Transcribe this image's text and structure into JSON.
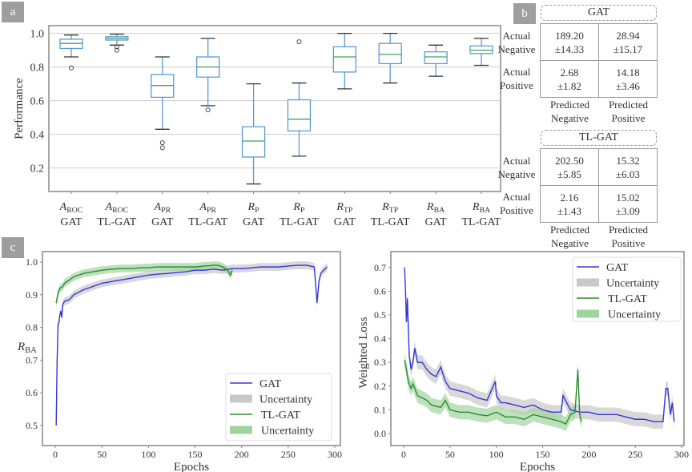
{
  "panel_labels": {
    "a": "a",
    "b": "b",
    "c": "c"
  },
  "chart_data": [
    {
      "type": "box",
      "id": "a",
      "ylabel": "Performance",
      "ylim": [
        0.05,
        1.05
      ],
      "yticks": [
        0.2,
        0.4,
        0.6,
        0.8,
        1.0
      ],
      "ytick_labels": [
        "0.2",
        "0.4",
        "0.6",
        "0.8",
        "1.0"
      ],
      "grid": "horizontal",
      "colors": {
        "box": "#5b9bd5",
        "median": "#3ca55c",
        "whisker": "#5b9bd5",
        "cap": "#333333"
      },
      "categories": [
        {
          "sym": "A",
          "sub": "ROC",
          "model": "GAT"
        },
        {
          "sym": "A",
          "sub": "ROC",
          "model": "TL-GAT"
        },
        {
          "sym": "A",
          "sub": "PR",
          "model": "GAT"
        },
        {
          "sym": "A",
          "sub": "PR",
          "model": "TL-GAT"
        },
        {
          "sym": "R",
          "sub": "P",
          "model": "GAT"
        },
        {
          "sym": "R",
          "sub": "P",
          "model": "TL-GAT"
        },
        {
          "sym": "R",
          "sub": "TP",
          "model": "GAT"
        },
        {
          "sym": "R",
          "sub": "TP",
          "model": "TL-GAT"
        },
        {
          "sym": "R",
          "sub": "BA",
          "model": "GAT"
        },
        {
          "sym": "R",
          "sub": "BA",
          "model": "TL-GAT"
        }
      ],
      "boxes": [
        {
          "lo": 0.86,
          "q1": 0.91,
          "med": 0.94,
          "q3": 0.965,
          "hi": 0.99,
          "outliers": [
            0.795
          ]
        },
        {
          "lo": 0.93,
          "q1": 0.96,
          "med": 0.97,
          "q3": 0.98,
          "hi": 0.995,
          "outliers": [
            0.92,
            0.9
          ]
        },
        {
          "lo": 0.43,
          "q1": 0.62,
          "med": 0.69,
          "q3": 0.755,
          "hi": 0.86,
          "outliers": [
            0.35,
            0.32
          ]
        },
        {
          "lo": 0.57,
          "q1": 0.74,
          "med": 0.8,
          "q3": 0.86,
          "hi": 0.97,
          "outliers": [
            0.545
          ]
        },
        {
          "lo": 0.105,
          "q1": 0.265,
          "med": 0.36,
          "q3": 0.445,
          "hi": 0.7,
          "outliers": []
        },
        {
          "lo": 0.27,
          "q1": 0.42,
          "med": 0.49,
          "q3": 0.605,
          "hi": 0.705,
          "outliers": [
            0.95
          ]
        },
        {
          "lo": 0.67,
          "q1": 0.77,
          "med": 0.86,
          "q3": 0.92,
          "hi": 1.0,
          "outliers": []
        },
        {
          "lo": 0.705,
          "q1": 0.82,
          "med": 0.875,
          "q3": 0.94,
          "hi": 1.0,
          "outliers": []
        },
        {
          "lo": 0.745,
          "q1": 0.82,
          "med": 0.86,
          "q3": 0.89,
          "hi": 0.93,
          "outliers": []
        },
        {
          "lo": 0.81,
          "q1": 0.88,
          "med": 0.9,
          "q3": 0.925,
          "hi": 0.97,
          "outliers": []
        }
      ]
    },
    {
      "type": "table",
      "id": "b",
      "matrices": [
        {
          "title": "GAT",
          "row_labels": [
            [
              "Actual",
              "Negative"
            ],
            [
              "Actual",
              "Positive"
            ]
          ],
          "col_labels": [
            [
              "Predicted",
              "Negative"
            ],
            [
              "Predicted",
              "Positive"
            ]
          ],
          "cells": [
            [
              [
                "189.20",
                "±14.33"
              ],
              [
                "28.94",
                "±15.17"
              ]
            ],
            [
              [
                "2.68",
                "±1.82"
              ],
              [
                "14.18",
                "±3.46"
              ]
            ]
          ]
        },
        {
          "title": "TL-GAT",
          "row_labels": [
            [
              "Actual",
              "Negative"
            ],
            [
              "Actual",
              "Positive"
            ]
          ],
          "col_labels": [
            [
              "Predicted",
              "Negative"
            ],
            [
              "Predicted",
              "Positive"
            ]
          ],
          "cells": [
            [
              [
                "202.50",
                "±5.85"
              ],
              [
                "15.32",
                "±6.03"
              ]
            ],
            [
              [
                "2.16",
                "±1.43"
              ],
              [
                "15.02",
                "±3.09"
              ]
            ]
          ]
        }
      ]
    },
    {
      "type": "line",
      "id": "c-left",
      "xlabel": "Epochs",
      "ylabel": {
        "sym": "R",
        "sub": "BA"
      },
      "xlim": [
        -10,
        305
      ],
      "ylim": [
        0.44,
        1.03
      ],
      "xticks": [
        0,
        50,
        100,
        150,
        200,
        250,
        300
      ],
      "yticks": [
        0.5,
        0.6,
        0.7,
        0.8,
        0.9,
        1.0
      ],
      "ytick_labels": [
        "0.5",
        "0.6",
        "0.7",
        "0.8",
        "0.9",
        "1.0"
      ],
      "legend": {
        "position": "lower-right",
        "entries": [
          "GAT",
          "Uncertainty",
          "TL-GAT",
          "Uncertainty"
        ]
      },
      "series": [
        {
          "name": "GAT",
          "color": "#3535d8",
          "band_color": "#c8c8c8",
          "x": [
            1,
            2,
            3,
            4,
            5,
            6,
            7,
            8,
            10,
            15,
            20,
            30,
            40,
            50,
            60,
            70,
            80,
            90,
            100,
            110,
            120,
            130,
            140,
            150,
            160,
            170,
            180,
            190,
            200,
            210,
            220,
            230,
            240,
            250,
            260,
            270,
            278,
            281,
            283,
            285,
            288,
            292
          ],
          "y": [
            0.5,
            0.7,
            0.81,
            0.815,
            0.84,
            0.85,
            0.83,
            0.87,
            0.88,
            0.885,
            0.9,
            0.915,
            0.925,
            0.935,
            0.94,
            0.945,
            0.95,
            0.955,
            0.96,
            0.963,
            0.965,
            0.968,
            0.97,
            0.975,
            0.975,
            0.978,
            0.975,
            0.98,
            0.98,
            0.982,
            0.985,
            0.985,
            0.985,
            0.988,
            0.99,
            0.99,
            0.985,
            0.875,
            0.94,
            0.965,
            0.975,
            0.985
          ]
        },
        {
          "name": "TL-GAT",
          "color": "#2e8b2e",
          "band_color": "#9fd49f",
          "x": [
            1,
            3,
            5,
            8,
            10,
            15,
            20,
            30,
            40,
            50,
            60,
            70,
            80,
            90,
            100,
            110,
            120,
            130,
            140,
            150,
            160,
            170,
            175,
            180,
            185,
            188,
            190
          ],
          "y": [
            0.875,
            0.905,
            0.92,
            0.925,
            0.935,
            0.945,
            0.955,
            0.965,
            0.97,
            0.975,
            0.978,
            0.98,
            0.98,
            0.982,
            0.983,
            0.985,
            0.985,
            0.985,
            0.985,
            0.985,
            0.988,
            0.99,
            0.99,
            0.985,
            0.975,
            0.96,
            0.975
          ]
        }
      ]
    },
    {
      "type": "line",
      "id": "c-right",
      "xlabel": "Epochs",
      "ylabel": "Weighted  Loss",
      "xlim": [
        -10,
        305
      ],
      "ylim": [
        -0.05,
        0.77
      ],
      "xticks": [
        0,
        50,
        100,
        150,
        200,
        250,
        300
      ],
      "yticks": [
        0.0,
        0.1,
        0.2,
        0.3,
        0.4,
        0.5,
        0.6,
        0.7
      ],
      "ytick_labels": [
        "0.0",
        "0.1",
        "0.2",
        "0.3",
        "0.4",
        "0.5",
        "0.6",
        "0.7"
      ],
      "legend": {
        "position": "upper-right",
        "entries": [
          "GAT",
          "Uncertainty",
          "TL-GAT",
          "Uncertainty"
        ]
      },
      "series": [
        {
          "name": "GAT",
          "color": "#3535d8",
          "band_color": "#c8c8c8",
          "x": [
            1,
            2,
            3,
            4,
            5,
            6,
            8,
            10,
            12,
            15,
            20,
            25,
            30,
            35,
            40,
            45,
            50,
            60,
            70,
            80,
            90,
            99,
            100,
            105,
            110,
            120,
            130,
            140,
            150,
            160,
            170,
            172,
            180,
            190,
            200,
            210,
            220,
            230,
            240,
            250,
            260,
            270,
            276,
            280,
            283,
            285,
            288,
            290,
            292
          ],
          "y": [
            0.7,
            0.6,
            0.47,
            0.57,
            0.45,
            0.33,
            0.27,
            0.3,
            0.36,
            0.3,
            0.3,
            0.27,
            0.25,
            0.24,
            0.28,
            0.22,
            0.19,
            0.18,
            0.17,
            0.15,
            0.14,
            0.22,
            0.16,
            0.13,
            0.13,
            0.12,
            0.11,
            0.12,
            0.1,
            0.09,
            0.09,
            0.16,
            0.1,
            0.09,
            0.09,
            0.08,
            0.08,
            0.08,
            0.07,
            0.06,
            0.06,
            0.05,
            0.05,
            0.05,
            0.19,
            0.19,
            0.08,
            0.13,
            0.05
          ]
        },
        {
          "name": "TL-GAT",
          "color": "#2e8b2e",
          "band_color": "#9fd49f",
          "x": [
            1,
            3,
            5,
            8,
            10,
            15,
            20,
            25,
            30,
            40,
            45,
            50,
            60,
            70,
            80,
            90,
            100,
            110,
            120,
            130,
            140,
            150,
            160,
            170,
            175,
            180,
            185,
            188,
            190,
            192
          ],
          "y": [
            0.31,
            0.27,
            0.22,
            0.19,
            0.21,
            0.16,
            0.15,
            0.14,
            0.12,
            0.11,
            0.14,
            0.1,
            0.09,
            0.09,
            0.08,
            0.075,
            0.09,
            0.07,
            0.07,
            0.06,
            0.08,
            0.07,
            0.06,
            0.05,
            0.04,
            0.08,
            0.09,
            0.27,
            0.08,
            0.05
          ]
        }
      ]
    }
  ]
}
